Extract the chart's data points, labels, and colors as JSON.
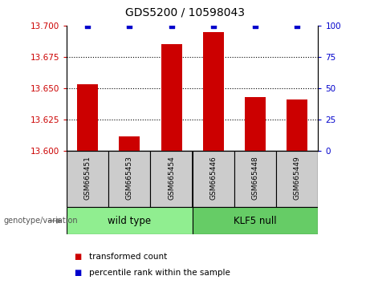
{
  "title": "GDS5200 / 10598043",
  "samples": [
    "GSM665451",
    "GSM665453",
    "GSM665454",
    "GSM665446",
    "GSM665448",
    "GSM665449"
  ],
  "red_values": [
    13.653,
    13.611,
    13.685,
    13.695,
    13.643,
    13.641
  ],
  "blue_values": [
    100,
    100,
    100,
    100,
    100,
    100
  ],
  "ylim_left": [
    13.6,
    13.7
  ],
  "ylim_right": [
    0,
    100
  ],
  "yticks_left": [
    13.6,
    13.625,
    13.65,
    13.675,
    13.7
  ],
  "yticks_right": [
    0,
    25,
    50,
    75,
    100
  ],
  "groups": [
    {
      "label": "wild type",
      "color": "#90EE90",
      "indices": [
        0,
        1,
        2
      ]
    },
    {
      "label": "KLF5 null",
      "color": "#66CC66",
      "indices": [
        3,
        4,
        5
      ]
    }
  ],
  "genotype_label": "genotype/variation",
  "legend_items": [
    {
      "color": "#CC0000",
      "label": "transformed count"
    },
    {
      "color": "#0000CC",
      "label": "percentile rank within the sample"
    }
  ],
  "bar_color": "#CC0000",
  "blue_color": "#0000CC",
  "tick_color_left": "#CC0000",
  "tick_color_right": "#0000CC",
  "bar_width": 0.5,
  "grid_lines": [
    13.625,
    13.65,
    13.675
  ]
}
